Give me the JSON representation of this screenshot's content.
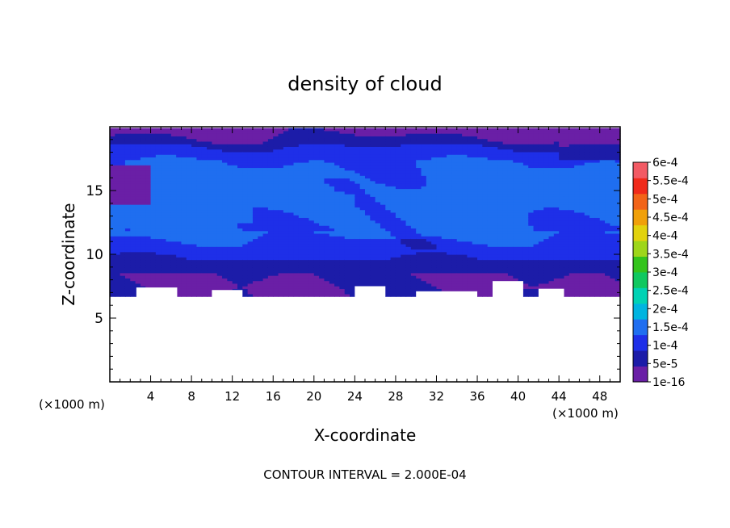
{
  "chart_data": {
    "type": "heatmap",
    "title": "density of cloud",
    "xlabel": "X-coordinate",
    "ylabel": "Z-coordinate",
    "x_unit_left": "(×1000 m)",
    "x_unit_right": "(×1000 m)",
    "footer": "CONTOUR INTERVAL = 2.000E-04",
    "xlim": [
      0,
      50
    ],
    "ylim": [
      0,
      20
    ],
    "x_ticks": [
      "4",
      "8",
      "12",
      "16",
      "20",
      "24",
      "28",
      "32",
      "36",
      "40",
      "44",
      "48"
    ],
    "y_ticks": [
      "5",
      "10",
      "15"
    ],
    "colorbar": {
      "labels": [
        "1e-16",
        "5e-5",
        "1e-4",
        "1.5e-4",
        "2e-4",
        "2.5e-4",
        "3e-4",
        "3.5e-4",
        "4e-4",
        "4.5e-4",
        "5e-4",
        "5.5e-4",
        "6e-4"
      ],
      "colors": [
        "#6a1fa6",
        "#1c1ca8",
        "#1e2fe8",
        "#1f6ef0",
        "#00b4e0",
        "#00d2b4",
        "#10c860",
        "#34c41c",
        "#9ed61a",
        "#e2d20e",
        "#f0a00a",
        "#f26418",
        "#f02a1a",
        "#f25a64"
      ]
    },
    "cloud_base_z": 7.0,
    "cloud_top_z": 19.9,
    "max_density_region": "1.5e-4 to 2e-4 around z 12–17"
  }
}
